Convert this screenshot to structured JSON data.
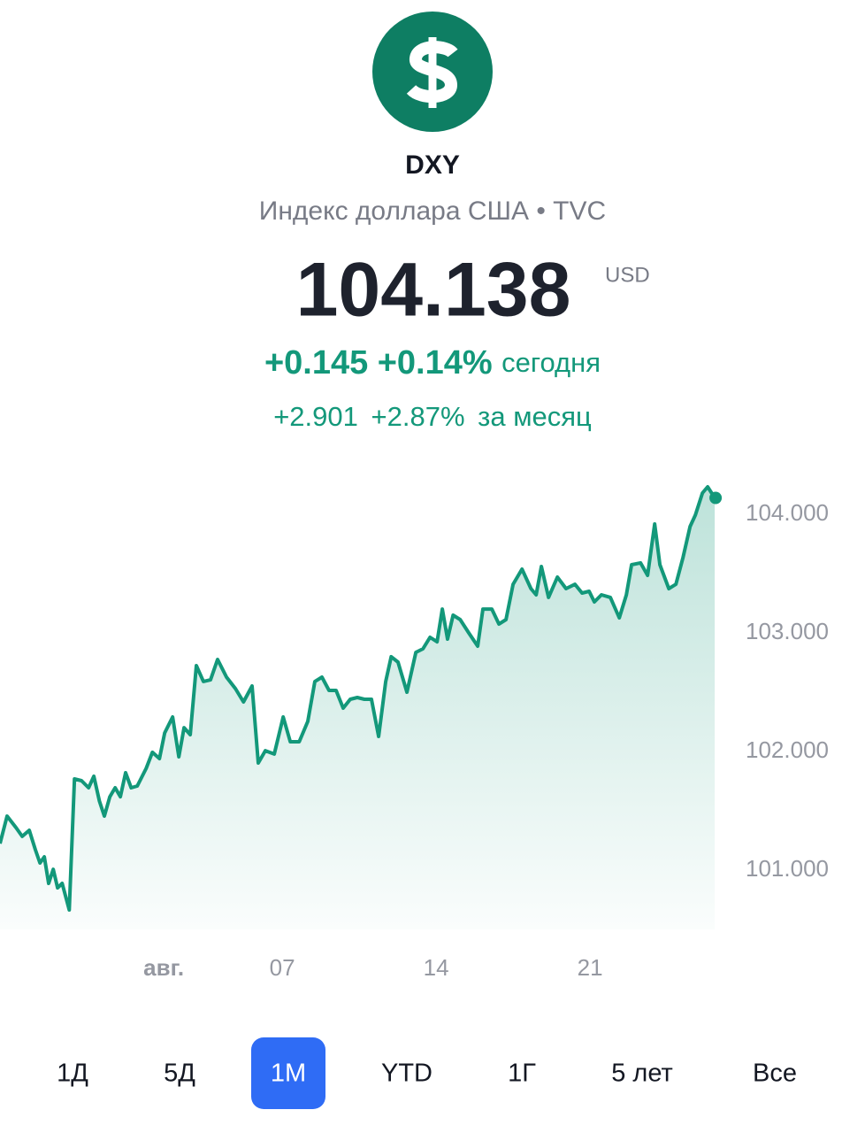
{
  "header": {
    "ticker": "DXY",
    "subtitle": "Индекс доллара США • TVC",
    "price": "104.138",
    "currency": "USD",
    "today": {
      "change": "+0.145",
      "percent": "+0.14%",
      "period": "сегодня"
    },
    "month": {
      "change": "+2.901",
      "percent": "+2.87%",
      "period": "за месяц"
    }
  },
  "chart_data": {
    "type": "area",
    "color": "#13987a",
    "x": [
      -5.32,
      -5.09,
      -4.8,
      -4.6,
      -4.37,
      -4.17,
      -4.02,
      -3.88,
      -3.74,
      -3.59,
      -3.45,
      -3.3,
      -3.07,
      -2.9,
      -2.67,
      -2.44,
      -2.27,
      -2.09,
      -1.93,
      -1.75,
      -1.58,
      -1.41,
      -1.24,
      -1.06,
      -0.86,
      -0.57,
      -0.37,
      -0.14,
      0.03,
      0.29,
      0.49,
      0.66,
      0.86,
      1.06,
      1.29,
      1.52,
      1.75,
      2.04,
      2.33,
      2.59,
      2.87,
      3.07,
      3.3,
      3.59,
      3.88,
      4.11,
      4.4,
      4.68,
      4.91,
      5.14,
      5.37,
      5.6,
      5.83,
      6.06,
      6.29,
      6.52,
      6.75,
      6.98,
      7.21,
      7.39,
      7.61,
      7.9,
      8.19,
      8.42,
      8.65,
      8.88,
      9.05,
      9.22,
      9.4,
      9.63,
      9.91,
      10.2,
      10.37,
      10.66,
      10.89,
      11.12,
      11.35,
      11.64,
      11.93,
      12.1,
      12.27,
      12.5,
      12.79,
      13.07,
      13.36,
      13.59,
      13.82,
      13.99,
      14.22,
      14.51,
      14.8,
      15.03,
      15.2,
      15.49,
      15.72,
      15.95,
      16.12,
      16.41,
      16.64,
      16.87,
      17.1,
      17.27,
      17.5,
      17.67,
      17.9
    ],
    "values": [
      101.224,
      101.455,
      101.358,
      101.284,
      101.336,
      101.172,
      101.06,
      101.112,
      100.888,
      101.007,
      100.851,
      100.888,
      100.664,
      101.769,
      101.754,
      101.694,
      101.791,
      101.582,
      101.455,
      101.619,
      101.694,
      101.619,
      101.821,
      101.694,
      101.709,
      101.858,
      101.993,
      101.94,
      102.157,
      102.291,
      101.955,
      102.201,
      102.142,
      102.724,
      102.59,
      102.604,
      102.776,
      102.627,
      102.53,
      102.418,
      102.552,
      101.903,
      102.007,
      101.978,
      102.291,
      102.082,
      102.082,
      102.254,
      102.59,
      102.627,
      102.515,
      102.515,
      102.366,
      102.44,
      102.455,
      102.44,
      102.44,
      102.127,
      102.59,
      102.799,
      102.754,
      102.5,
      102.836,
      102.866,
      102.963,
      102.925,
      103.201,
      102.948,
      103.149,
      103.112,
      103.0,
      102.888,
      103.201,
      103.201,
      103.075,
      103.112,
      103.41,
      103.537,
      103.373,
      103.321,
      103.56,
      103.299,
      103.47,
      103.373,
      103.41,
      103.336,
      103.351,
      103.261,
      103.321,
      103.299,
      103.127,
      103.321,
      103.575,
      103.59,
      103.485,
      103.918,
      103.575,
      103.373,
      103.41,
      103.634,
      103.896,
      103.993,
      104.179,
      104.231,
      104.138
    ],
    "xlim": [
      -5.32,
      18.53
    ],
    "ylim": [
      100.5,
      104.306
    ],
    "xticks": [
      {
        "value": 0,
        "label": "авг."
      },
      {
        "value": 3.85,
        "label": "07"
      },
      {
        "value": 8.85,
        "label": "14"
      },
      {
        "value": 13.85,
        "label": "21"
      }
    ],
    "yticks": [
      {
        "value": 101,
        "label": "101.000"
      },
      {
        "value": 102,
        "label": "102.000"
      },
      {
        "value": 103,
        "label": "103.000"
      },
      {
        "value": 104,
        "label": "104.000"
      }
    ]
  },
  "tabs": {
    "items": [
      "1Д",
      "5Д",
      "1M",
      "YTD",
      "1Г",
      "5 лет",
      "Все"
    ],
    "selected": 2
  }
}
